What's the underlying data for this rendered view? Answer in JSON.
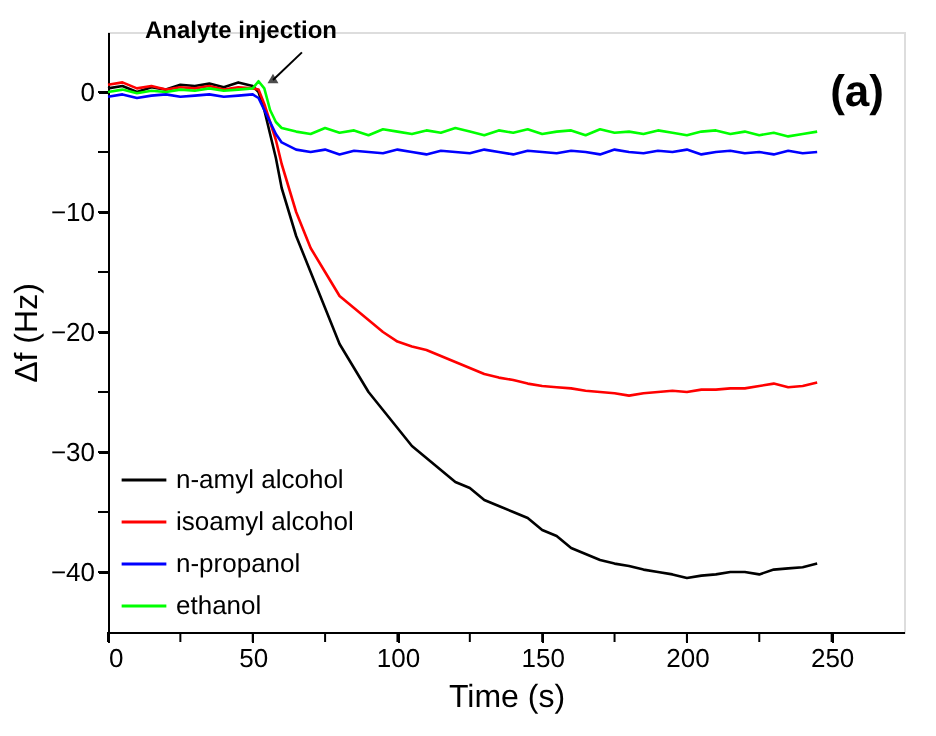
{
  "chart_data": {
    "type": "line",
    "xlabel": "Time (s)",
    "ylabel": "Δf (Hz)",
    "annotations": [
      {
        "text": "Analyte injection",
        "x": 57,
        "y": 1
      },
      "(a)"
    ],
    "x": [
      0,
      5,
      10,
      15,
      20,
      25,
      30,
      35,
      40,
      45,
      50,
      52,
      54,
      56,
      58,
      60,
      65,
      70,
      75,
      80,
      85,
      90,
      95,
      100,
      105,
      110,
      115,
      120,
      125,
      130,
      135,
      140,
      145,
      150,
      155,
      160,
      165,
      170,
      175,
      180,
      185,
      190,
      195,
      200,
      205,
      210,
      215,
      220,
      225,
      230,
      235,
      240,
      245
    ],
    "series": [
      {
        "name": "n-amyl alcohol",
        "color": "#000000",
        "values": [
          0.3,
          0.5,
          0,
          0.4,
          0.2,
          0.6,
          0.5,
          0.7,
          0.4,
          0.8,
          0.5,
          0,
          -1.5,
          -3.5,
          -5.5,
          -8,
          -12,
          -15,
          -18,
          -21,
          -23,
          -25,
          -26.5,
          -28,
          -29.5,
          -30.5,
          -31.5,
          -32.5,
          -33,
          -34,
          -34.5,
          -35,
          -35.5,
          -36.5,
          -37,
          -38,
          -38.5,
          -39,
          -39.3,
          -39.5,
          -39.8,
          -40,
          -40.2,
          -40.5,
          -40.3,
          -40.2,
          -40,
          -40,
          -40.2,
          -39.8,
          -39.7,
          -39.6,
          -39.3
        ]
      },
      {
        "name": "isoamyl alcohol",
        "color": "#ff0000",
        "values": [
          0.6,
          0.8,
          0.3,
          0.5,
          0.2,
          0.4,
          0.3,
          0.5,
          0.2,
          0.4,
          0.3,
          0.2,
          -1,
          -2.5,
          -4,
          -6,
          -10,
          -13,
          -15,
          -17,
          -18,
          -19,
          -20,
          -20.8,
          -21.2,
          -21.5,
          -22,
          -22.5,
          -23,
          -23.5,
          -23.8,
          -24,
          -24.3,
          -24.5,
          -24.6,
          -24.7,
          -24.9,
          -25,
          -25.1,
          -25.3,
          -25.1,
          -25,
          -24.9,
          -25,
          -24.8,
          -24.8,
          -24.7,
          -24.7,
          -24.5,
          -24.3,
          -24.6,
          -24.5,
          -24.2
        ]
      },
      {
        "name": "n-propanol",
        "color": "#0000ff",
        "values": [
          -0.4,
          -0.2,
          -0.5,
          -0.3,
          -0.2,
          -0.4,
          -0.3,
          -0.2,
          -0.4,
          -0.3,
          -0.2,
          -0.5,
          -1.5,
          -2.5,
          -3.5,
          -4.2,
          -4.8,
          -5,
          -4.8,
          -5.2,
          -4.9,
          -5,
          -5.1,
          -4.8,
          -5,
          -5.2,
          -4.9,
          -5,
          -5.1,
          -4.8,
          -5,
          -5.2,
          -4.9,
          -5,
          -5.1,
          -4.9,
          -5,
          -5.2,
          -4.8,
          -5,
          -5.1,
          -4.9,
          -5,
          -4.8,
          -5.2,
          -5,
          -4.9,
          -5.1,
          -5,
          -5.2,
          -4.9,
          -5.1,
          -5
        ]
      },
      {
        "name": "ethanol",
        "color": "#00ff00",
        "values": [
          0,
          0.2,
          -0.1,
          0.1,
          0,
          0.2,
          0.1,
          0.3,
          0.1,
          0.2,
          0.3,
          0.9,
          0.3,
          -1.5,
          -2.5,
          -3,
          -3.3,
          -3.5,
          -3,
          -3.4,
          -3.2,
          -3.6,
          -3.1,
          -3.3,
          -3.5,
          -3.2,
          -3.4,
          -3,
          -3.3,
          -3.6,
          -3.2,
          -3.4,
          -3.1,
          -3.5,
          -3.3,
          -3.2,
          -3.6,
          -3.1,
          -3.4,
          -3.3,
          -3.5,
          -3.2,
          -3.4,
          -3.6,
          -3.3,
          -3.2,
          -3.5,
          -3.3,
          -3.6,
          -3.4,
          -3.7,
          -3.5,
          -3.3
        ]
      }
    ],
    "xlim": [
      0,
      275
    ],
    "xticks": [
      0,
      {
        "value": 25,
        "label": null
      },
      50,
      {
        "value": 75,
        "label": null
      },
      100,
      {
        "value": 125,
        "label": null
      },
      150,
      {
        "value": 175,
        "label": null
      },
      200,
      {
        "value": 225,
        "label": null
      },
      250
    ],
    "ylim": [
      -45,
      5
    ],
    "yticks": [
      -40,
      {
        "value": -35,
        "label": null
      },
      -30,
      {
        "value": -25,
        "label": null
      },
      -20,
      {
        "value": -15,
        "label": null
      },
      -10,
      {
        "value": -5,
        "label": null
      },
      0
    ],
    "grid": false,
    "legend": "bottom left",
    "marker": "none",
    "line_style": "solid"
  }
}
